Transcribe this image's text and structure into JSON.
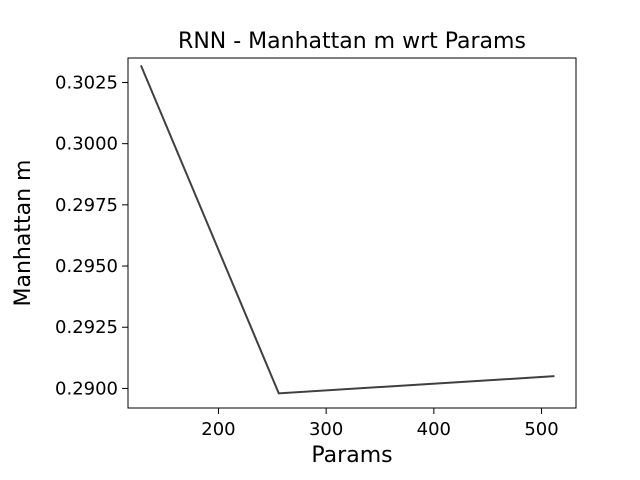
{
  "chart_data": {
    "type": "line",
    "title": "RNN - Manhattan m wrt Params",
    "xlabel": "Params",
    "ylabel": "Manhattan m",
    "xlim": [
      116,
      532
    ],
    "ylim": [
      0.2892,
      0.3035
    ],
    "xticks": [
      200,
      300,
      400,
      500
    ],
    "xtick_labels": [
      "200",
      "300",
      "400",
      "500"
    ],
    "yticks": [
      0.29,
      0.2925,
      0.295,
      0.2975,
      0.3,
      0.3025
    ],
    "ytick_labels": [
      "0.2900",
      "0.2925",
      "0.2950",
      "0.2975",
      "0.3000",
      "0.3025"
    ],
    "grid": false,
    "series": [
      {
        "color": "#404040",
        "x": [
          128,
          256,
          512
        ],
        "y": [
          0.3032,
          0.2898,
          0.2905
        ]
      }
    ]
  }
}
